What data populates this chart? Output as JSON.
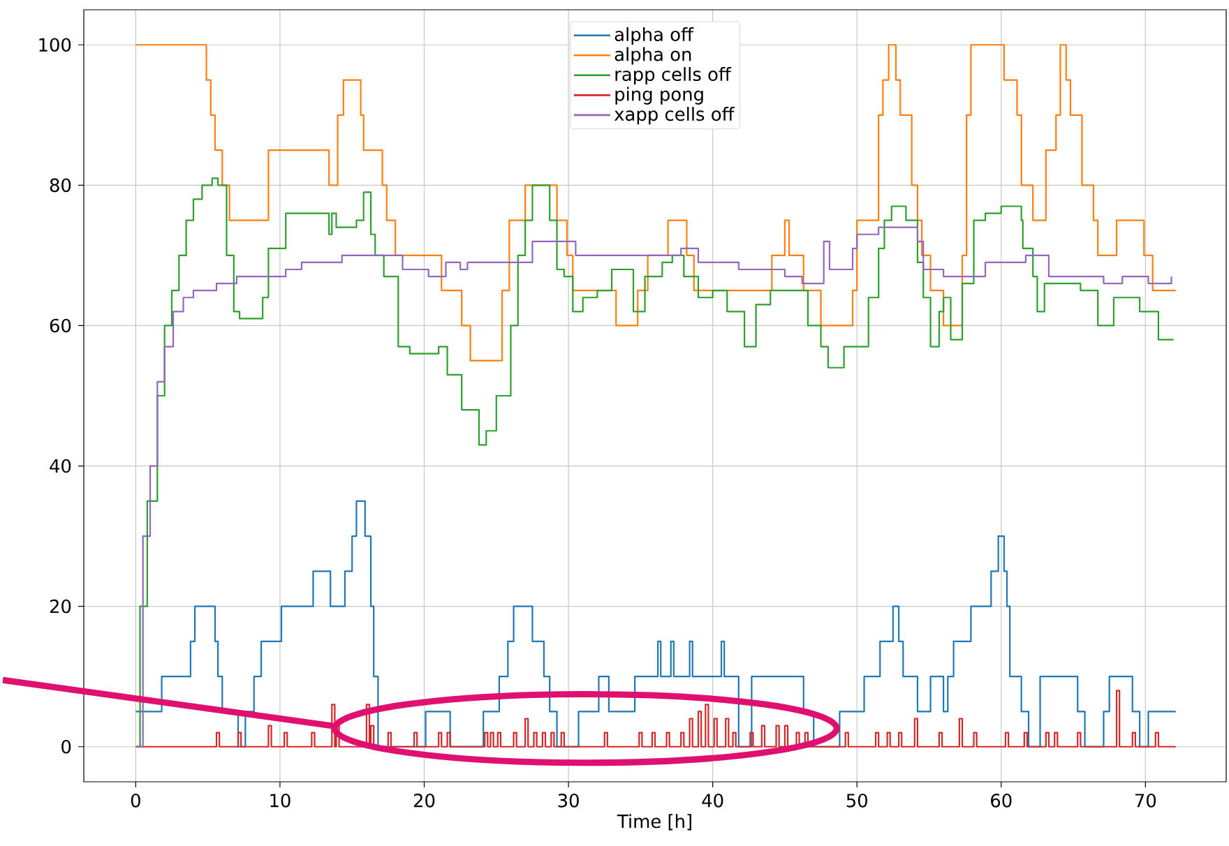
{
  "chart_data": {
    "type": "step",
    "xlabel": "Time [h]",
    "xlim": [
      -3.6,
      75.6
    ],
    "ylim": [
      -5,
      105
    ],
    "xticks": [
      0,
      10,
      20,
      30,
      40,
      50,
      60,
      70
    ],
    "yticks": [
      0,
      20,
      40,
      60,
      80,
      100
    ],
    "grid": true,
    "legend": "top",
    "series": [
      {
        "name": "alpha off",
        "color": "#1f77b4",
        "x": [
          0,
          1.8,
          3.8,
          4.1,
          5.5,
          5.7,
          6.0,
          7.1,
          7.6,
          8.2,
          8.7,
          10.1,
          12.3,
          13.5,
          14.5,
          15.0,
          15.3,
          15.9,
          16.3,
          16.5,
          16.8,
          20.1,
          21.8,
          24.1,
          25.2,
          25.8,
          26.2,
          27.5,
          28.3,
          28.7,
          29.2,
          30.7,
          32.1,
          32.8,
          34.6,
          36.2,
          36.4,
          37.1,
          37.3,
          38.4,
          38.6,
          39.0,
          40.6,
          40.8,
          41.8,
          42.7,
          46.3,
          47.0,
          48.8,
          50.5,
          51.6,
          52.5,
          52.9,
          53.2,
          54.2,
          55.1,
          56.0,
          56.3,
          56.7,
          57.9,
          59.3,
          59.8,
          60.2,
          60.4,
          60.6,
          61.4,
          61.9,
          62.7,
          65.3,
          65.8,
          67.1,
          67.5,
          69.1,
          69.6,
          70.2,
          72.1
        ],
        "values": [
          5,
          10,
          15,
          20,
          15,
          10,
          5,
          0,
          5,
          10,
          15,
          20,
          25,
          20,
          25,
          30,
          35,
          30,
          20,
          10,
          0,
          5,
          0,
          5,
          10,
          15,
          20,
          15,
          10,
          5,
          0,
          5,
          10,
          5,
          10,
          15,
          10,
          15,
          10,
          15,
          10,
          10,
          15,
          10,
          0,
          10,
          5,
          0,
          5,
          10,
          15,
          20,
          15,
          10,
          5,
          10,
          5,
          10,
          15,
          20,
          25,
          30,
          25,
          20,
          10,
          5,
          0,
          10,
          5,
          0,
          5,
          10,
          5,
          0,
          5,
          5
        ]
      },
      {
        "name": "alpha on",
        "color": "#ff7f0e",
        "x": [
          0,
          4.9,
          5.2,
          5.5,
          6.0,
          6.5,
          9.2,
          13.4,
          14.0,
          14.4,
          15.6,
          15.8,
          17.1,
          17.4,
          18.0,
          21.2,
          22.6,
          23.2,
          25.4,
          25.9,
          27.0,
          29.2,
          29.9,
          30.3,
          33.3,
          34.8,
          35.5,
          36.9,
          38.2,
          38.7,
          44.1,
          45.0,
          45.3,
          46.3,
          47.5,
          49.7,
          50.0,
          51.5,
          51.8,
          52.2,
          52.7,
          53.0,
          53.8,
          54.2,
          54.5,
          55.1,
          56.0,
          57.3,
          57.6,
          57.9,
          60.2,
          61.1,
          61.4,
          62.2,
          63.1,
          63.8,
          64.1,
          64.5,
          64.8,
          65.6,
          66.4,
          66.7,
          68.0,
          69.9,
          70.5,
          72.1
        ],
        "values": [
          100,
          95,
          90,
          85,
          80,
          75,
          85,
          80,
          90,
          95,
          90,
          85,
          80,
          75,
          70,
          65,
          60,
          55,
          65,
          75,
          80,
          75,
          70,
          65,
          60,
          65,
          70,
          75,
          70,
          65,
          70,
          75,
          70,
          65,
          60,
          65,
          75,
          90,
          95,
          100,
          95,
          90,
          80,
          75,
          70,
          65,
          60,
          70,
          90,
          100,
          95,
          90,
          80,
          75,
          85,
          90,
          100,
          95,
          90,
          80,
          75,
          70,
          75,
          70,
          65,
          65
        ]
      },
      {
        "name": "rapp cells off",
        "color": "#2ca02c",
        "x": [
          0,
          0.3,
          0.8,
          1.5,
          2.0,
          2.5,
          3.0,
          3.5,
          4.0,
          4.6,
          5.3,
          5.7,
          6.3,
          6.8,
          7.2,
          8.8,
          9.2,
          10.4,
          13.4,
          13.6,
          13.9,
          15.3,
          15.8,
          16.3,
          16.6,
          17.2,
          18.2,
          19.0,
          21.0,
          21.6,
          22.6,
          23.8,
          24.3,
          25.0,
          26.0,
          26.5,
          27.0,
          27.5,
          28.7,
          29.2,
          29.7,
          30.3,
          31.0,
          32.0,
          33.0,
          34.5,
          35.3,
          36.5,
          37.2,
          38.0,
          39.0,
          40.0,
          41.0,
          42.2,
          43.0,
          44.0,
          45.5,
          46.6,
          47.5,
          48.0,
          49.1,
          50.8,
          51.5,
          51.9,
          52.4,
          53.4,
          54.2,
          54.6,
          55.1,
          55.7,
          56.0,
          56.5,
          57.3,
          58.1,
          58.9,
          60.0,
          61.4,
          61.5,
          62.2,
          62.5,
          63.0,
          65.5,
          66.7,
          67.8,
          69.6,
          70.9,
          71.95
        ],
        "values": [
          0,
          20,
          35,
          50,
          60,
          65,
          70,
          75,
          78,
          80,
          81,
          80,
          70,
          62,
          61,
          64,
          71,
          76,
          73,
          76,
          74,
          75,
          79,
          73,
          70,
          67,
          57,
          56,
          57,
          53,
          48,
          43,
          45,
          50,
          60,
          70,
          75,
          80,
          75,
          68,
          67,
          62,
          64,
          65,
          68,
          62,
          67,
          69,
          70,
          67,
          64,
          65,
          62,
          57,
          63,
          65,
          65,
          60,
          57,
          54,
          57,
          64,
          71,
          75,
          77,
          75,
          69,
          64,
          57,
          62,
          64,
          58,
          66,
          75,
          76,
          77,
          75,
          71,
          67,
          62,
          66,
          65,
          60,
          64,
          62,
          58,
          58
        ]
      },
      {
        "name": "ping pong",
        "color": "#d62728",
        "x": [
          0,
          5.6,
          5.8,
          7.1,
          7.3,
          9.2,
          9.4,
          10.3,
          10.5,
          12.2,
          12.4,
          13.6,
          13.8,
          13.9,
          14.1,
          16.0,
          16.2,
          16.3,
          16.5,
          17.5,
          17.7,
          19.3,
          19.5,
          21.0,
          21.2,
          21.6,
          21.8,
          24.2,
          24.4,
          24.6,
          24.8,
          25.1,
          25.3,
          26.2,
          26.4,
          27.0,
          27.2,
          27.6,
          27.8,
          28.2,
          28.4,
          28.8,
          29.0,
          29.5,
          29.7,
          32.5,
          32.7,
          34.9,
          35.1,
          35.8,
          36.0,
          36.8,
          37.0,
          37.8,
          38.0,
          38.4,
          38.6,
          39.0,
          39.2,
          39.5,
          39.7,
          40.1,
          40.3,
          40.9,
          41.1,
          41.4,
          41.6,
          42.6,
          42.8,
          43.4,
          43.6,
          44.4,
          44.6,
          45.0,
          45.2,
          45.8,
          46.0,
          46.4,
          46.6,
          49.2,
          49.4,
          51.3,
          51.5,
          52.1,
          52.3,
          52.9,
          53.1,
          54.0,
          54.2,
          55.7,
          55.9,
          57.1,
          57.3,
          58.1,
          58.3,
          60.3,
          60.5,
          61.6,
          61.8,
          63.1,
          63.3,
          63.7,
          63.9,
          65.3,
          65.5,
          68.0,
          68.2,
          69.1,
          69.3,
          70.7,
          70.9,
          72.1
        ],
        "values": [
          0,
          2,
          0,
          2,
          0,
          3,
          0,
          2,
          0,
          2,
          0,
          6,
          0,
          3,
          0,
          6,
          0,
          3,
          0,
          2,
          0,
          2,
          0,
          2,
          0,
          2,
          0,
          2,
          0,
          2,
          0,
          2,
          0,
          2,
          0,
          4,
          0,
          2,
          0,
          2,
          0,
          2,
          0,
          2,
          0,
          2,
          0,
          2,
          0,
          2,
          0,
          2,
          0,
          2,
          0,
          4,
          0,
          5,
          0,
          6,
          0,
          4,
          0,
          4,
          0,
          2,
          0,
          2,
          0,
          3,
          0,
          3,
          0,
          3,
          0,
          2,
          0,
          2,
          0,
          2,
          0,
          2,
          0,
          2,
          0,
          2,
          0,
          4,
          0,
          2,
          0,
          4,
          0,
          2,
          0,
          2,
          0,
          2,
          0,
          2,
          0,
          2,
          0,
          2,
          0,
          8,
          0,
          2,
          0,
          2,
          0,
          0
        ]
      },
      {
        "name": "xapp cells off",
        "color": "#9467bd",
        "x": [
          0,
          0.5,
          1.0,
          1.5,
          2.0,
          2.6,
          3.3,
          4.0,
          5.6,
          7.0,
          8.7,
          10.4,
          11.5,
          14.3,
          15.6,
          17.0,
          18.5,
          20.3,
          21.5,
          22.5,
          23.0,
          27.5,
          29.7,
          30.5,
          36.2,
          37.8,
          39.0,
          41.8,
          45.0,
          46.2,
          46.4,
          47.7,
          48.1,
          49.7,
          50.0,
          51.5,
          53.0,
          54.2,
          54.6,
          56.0,
          58.9,
          61.7,
          63.3,
          67.1,
          68.4,
          70.2,
          71.8
        ],
        "values": [
          0,
          30,
          40,
          52,
          57,
          62,
          64,
          65,
          66,
          67,
          67,
          68,
          69,
          70,
          70,
          70,
          68,
          67,
          69,
          68,
          69,
          72,
          72,
          70,
          70,
          71,
          69,
          68,
          67,
          66,
          66,
          72,
          68,
          71,
          73,
          74,
          74,
          72,
          68,
          67,
          69,
          70,
          67,
          66,
          67,
          66,
          67
        ]
      }
    ]
  }
}
